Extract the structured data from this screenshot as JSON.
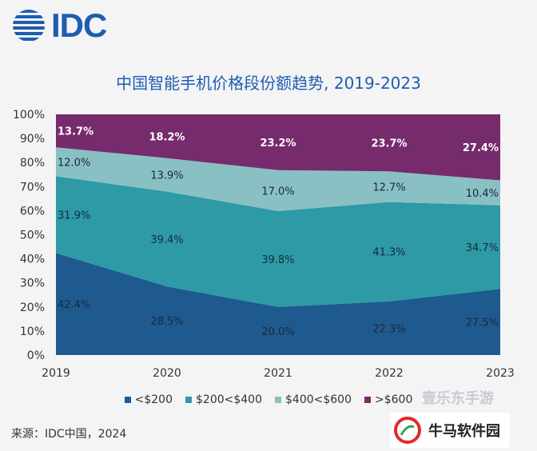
{
  "brand": {
    "logo_text": "IDC"
  },
  "chart_data": {
    "type": "area",
    "stacked": true,
    "percent": true,
    "title": "中国智能手机价格段份额趋势, 2019-2023",
    "categories": [
      "2019",
      "2020",
      "2021",
      "2022",
      "2023"
    ],
    "y_ticks": [
      "0%",
      "10%",
      "20%",
      "30%",
      "40%",
      "50%",
      "60%",
      "70%",
      "80%",
      "90%",
      "100%"
    ],
    "ylim": [
      0,
      100
    ],
    "legend_position": "bottom",
    "series": [
      {
        "name": "<$200",
        "color": "#1f5a8f",
        "values": [
          42.4,
          28.5,
          20.0,
          22.3,
          27.5
        ],
        "labels": [
          "42.4%",
          "28.5%",
          "20.0%",
          "22.3%",
          "27.5%"
        ],
        "label_color": "#1a2a3a"
      },
      {
        "name": "$200<$400",
        "color": "#2d9aa6",
        "values": [
          31.9,
          39.4,
          39.8,
          41.3,
          34.7
        ],
        "labels": [
          "31.9%",
          "39.4%",
          "39.8%",
          "41.3%",
          "34.7%"
        ],
        "label_color": "#1a2a3a"
      },
      {
        "name": "$400<$600",
        "color": "#89c0c4",
        "values": [
          12.0,
          13.9,
          17.0,
          12.7,
          10.4
        ],
        "labels": [
          "12.0%",
          "13.9%",
          "17.0%",
          "12.7%",
          "10.4%"
        ],
        "label_color": "#1a2a3a"
      },
      {
        "name": ">$600",
        "color": "#762b6c",
        "values": [
          13.7,
          18.2,
          23.2,
          23.7,
          27.4
        ],
        "labels": [
          "13.7%",
          "18.2%",
          "23.2%",
          "23.7%",
          "27.4%"
        ],
        "label_color": "#ffffff"
      }
    ]
  },
  "source": "来源：IDC中国，2024",
  "watermark": {
    "top_text": "壹乐东手游",
    "brand_text": "牛马软件园"
  }
}
